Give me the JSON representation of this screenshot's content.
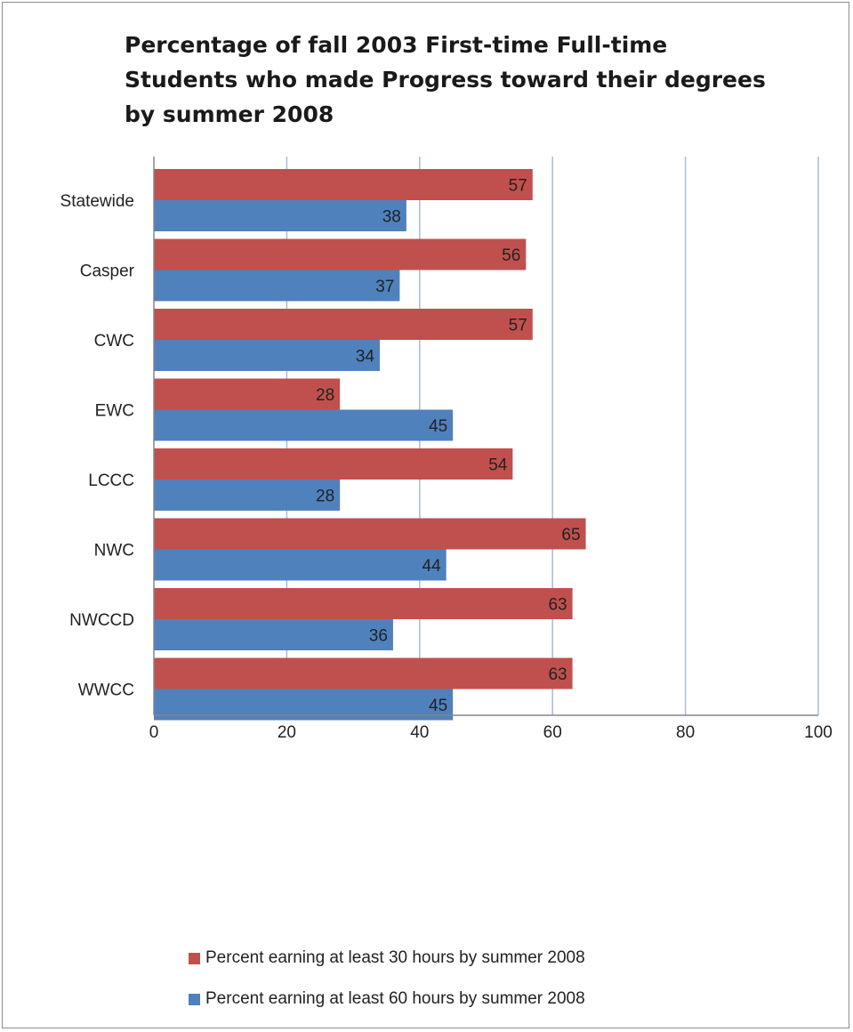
{
  "chart_data": {
    "type": "bar",
    "orientation": "horizontal",
    "title": "Percentage of fall 2003 First-time Full-time Students who made Progress toward their degrees by summer 2008",
    "categories": [
      "Statewide",
      "Casper",
      "CWC",
      "EWC",
      "LCCC",
      "NWC",
      "NWCCD",
      "WWCC"
    ],
    "series": [
      {
        "name": "Percent earning at least 30 hours by summer 2008",
        "color": "#c0504d",
        "values": [
          57,
          56,
          57,
          28,
          54,
          65,
          63,
          63
        ]
      },
      {
        "name": "Percent earning at least 60 hours by summer 2008",
        "color": "#4f81bd",
        "values": [
          38,
          37,
          34,
          45,
          28,
          44,
          36,
          45
        ]
      }
    ],
    "xlim": [
      0,
      100
    ],
    "xticks": [
      "0",
      "20",
      "40",
      "60",
      "80",
      "100"
    ],
    "grid": true,
    "legend_position": "bottom",
    "data_labels": true
  }
}
